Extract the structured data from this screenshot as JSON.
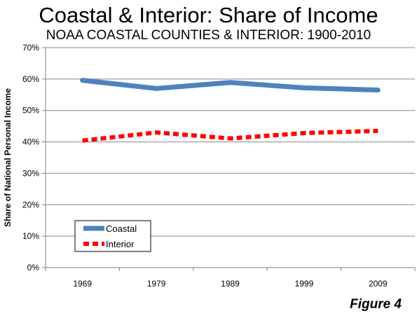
{
  "title": "Coastal & Interior: Share of Income",
  "subtitle": "NOAA COASTAL COUNTIES & INTERIOR: 1900-2010",
  "figure_label": "Figure 4",
  "chart_data": {
    "type": "line",
    "categories": [
      "1969",
      "1979",
      "1989",
      "1999",
      "2009"
    ],
    "series": [
      {
        "name": "Coastal",
        "values": [
          59.6,
          57.0,
          58.9,
          57.2,
          56.5
        ],
        "color": "#4f81bd",
        "style": "solid"
      },
      {
        "name": "Interior",
        "values": [
          40.4,
          43.0,
          41.1,
          42.8,
          43.5
        ],
        "color": "#ff0000",
        "style": "dashed"
      }
    ],
    "ylabel": "Share of National Personal Income",
    "xlabel": "",
    "ylim": [
      0,
      70
    ],
    "yticks": [
      "0%",
      "10%",
      "20%",
      "30%",
      "40%",
      "50%",
      "60%",
      "70%"
    ],
    "grid": true,
    "legend_position": "lower-left"
  }
}
